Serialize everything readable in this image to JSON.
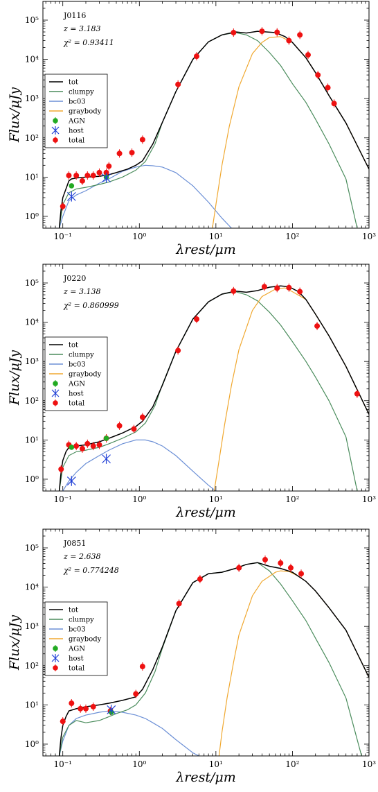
{
  "chart_data": [
    {
      "type": "line",
      "annotations": {
        "name": "J0116",
        "redshift": "z = 3.183",
        "chi2": "χ² = 0.93411"
      },
      "xlabel": "λrest/μm",
      "ylabel": "Flux/μJy",
      "xscale": "log",
      "yscale": "log",
      "xlim": [
        0.055,
        1000
      ],
      "ylim": [
        0.5,
        300000
      ],
      "xticklabels": [
        "10⁻¹",
        "10⁰",
        "10¹",
        "10²",
        "10³"
      ],
      "yticklabels": [
        "10⁰",
        "10¹",
        "10²",
        "10³",
        "10⁴",
        "10⁵"
      ],
      "legend_position": "left",
      "legend": [
        "tot",
        "clumpy",
        "bc03",
        "graybody",
        "AGN",
        "host",
        "total"
      ],
      "colors": {
        "tot": "#000000",
        "clumpy": "#4a8c5c",
        "bc03": "#6b8fd6",
        "graybody": "#f0a830",
        "agn": "#22aa22",
        "host": "#1f3fd6",
        "total": "#ee1111"
      },
      "series": [
        {
          "name": "tot",
          "x": [
            0.09,
            0.095,
            0.1,
            0.11,
            0.12,
            0.13,
            0.15,
            0.2,
            0.3,
            0.4,
            0.5,
            0.7,
            0.9,
            1.1,
            1.5,
            2,
            3,
            5,
            8,
            12,
            18,
            25,
            35,
            45,
            60,
            80,
            100,
            150,
            200,
            300,
            500,
            1000
          ],
          "y": [
            0.5,
            1.5,
            3,
            5,
            8,
            9,
            9.5,
            10,
            10.5,
            11.5,
            13,
            16,
            20,
            26,
            70,
            250,
            1500,
            10000,
            28000,
            42000,
            50000,
            47000,
            52000,
            50000,
            48000,
            38000,
            27000,
            11000,
            4600,
            1200,
            240,
            16
          ]
        },
        {
          "name": "clumpy",
          "x": [
            0.09,
            0.1,
            0.12,
            0.15,
            0.2,
            0.3,
            0.4,
            0.6,
            0.9,
            1.2,
            1.6,
            2,
            3,
            5,
            8,
            12,
            18,
            25,
            35,
            50,
            70,
            100,
            150,
            200,
            300,
            500,
            700
          ],
          "y": [
            0.5,
            2,
            4,
            5,
            5.5,
            6.5,
            7.5,
            10,
            15,
            25,
            70,
            250,
            1500,
            10000,
            28000,
            42000,
            48000,
            42000,
            30000,
            15000,
            7000,
            2400,
            800,
            300,
            70,
            9,
            0.5
          ]
        },
        {
          "name": "bc03",
          "x": [
            0.09,
            0.1,
            0.12,
            0.15,
            0.2,
            0.3,
            0.4,
            0.6,
            0.9,
            1.2,
            1.5,
            2,
            3,
            5,
            8,
            12,
            16
          ],
          "y": [
            0.5,
            1,
            2.5,
            3.5,
            4.5,
            7,
            9,
            14,
            18,
            20,
            19.5,
            18,
            13,
            6,
            2.3,
            0.9,
            0.5
          ]
        },
        {
          "name": "graybody",
          "x": [
            9,
            10,
            12,
            15,
            20,
            30,
            40,
            50,
            70,
            100,
            150,
            200,
            300,
            500,
            1000
          ],
          "y": [
            0.5,
            2,
            20,
            200,
            2000,
            14000,
            27000,
            36000,
            38000,
            27000,
            11000,
            4600,
            1200,
            240,
            16
          ]
        },
        {
          "name": "AGN",
          "x": [
            0.13,
            0.37
          ],
          "y": [
            6,
            10
          ]
        },
        {
          "name": "host",
          "x": [
            0.13,
            0.37
          ],
          "y": [
            3.2,
            9.5
          ]
        },
        {
          "name": "total",
          "x": [
            0.1,
            0.12,
            0.15,
            0.18,
            0.21,
            0.25,
            0.3,
            0.37,
            0.4,
            0.55,
            0.8,
            1.1,
            3.2,
            5.6,
            17,
            40,
            63,
            90,
            125,
            160,
            215,
            290,
            350
          ],
          "y": [
            1.8,
            11,
            11,
            8,
            11,
            11,
            13,
            13,
            19,
            40,
            42,
            90,
            2300,
            12000,
            48000,
            52000,
            49000,
            30000,
            42000,
            13000,
            4000,
            1900,
            750
          ]
        }
      ]
    },
    {
      "type": "line",
      "annotations": {
        "name": "J0220",
        "redshift": "z = 3.138",
        "chi2": "χ² = 0.860999"
      },
      "xlabel": "λrest/μm",
      "ylabel": "Flux/μJy",
      "xscale": "log",
      "yscale": "log",
      "xlim": [
        0.055,
        1000
      ],
      "ylim": [
        0.5,
        300000
      ],
      "xticklabels": [
        "10⁻¹",
        "10⁰",
        "10¹",
        "10²",
        "10³"
      ],
      "yticklabels": [
        "10⁰",
        "10¹",
        "10²",
        "10³",
        "10⁴",
        "10⁵"
      ],
      "legend_position": "left",
      "legend": [
        "tot",
        "clumpy",
        "bc03",
        "graybody",
        "AGN",
        "host",
        "total"
      ],
      "colors": {
        "tot": "#000000",
        "clumpy": "#4a8c5c",
        "bc03": "#6b8fd6",
        "graybody": "#f0a830",
        "agn": "#22aa22",
        "host": "#1f3fd6",
        "total": "#ee1111"
      },
      "series": [
        {
          "name": "tot",
          "x": [
            0.09,
            0.095,
            0.1,
            0.11,
            0.12,
            0.15,
            0.2,
            0.3,
            0.4,
            0.6,
            0.9,
            1.1,
            1.5,
            2,
            3,
            5,
            8,
            12,
            18,
            25,
            35,
            50,
            70,
            90,
            120,
            150,
            200,
            300,
            500,
            1000
          ],
          "y": [
            0.5,
            1.5,
            3,
            5,
            6.5,
            7,
            7.5,
            9,
            11,
            15,
            22,
            30,
            70,
            250,
            1800,
            12000,
            33000,
            52000,
            62000,
            58000,
            64000,
            78000,
            84000,
            80000,
            60000,
            38000,
            16000,
            4500,
            750,
            45
          ]
        },
        {
          "name": "clumpy",
          "x": [
            0.09,
            0.1,
            0.12,
            0.15,
            0.2,
            0.3,
            0.4,
            0.6,
            0.9,
            1.2,
            1.6,
            2,
            3,
            5,
            8,
            12,
            18,
            25,
            35,
            50,
            70,
            100,
            150,
            200,
            300,
            500,
            700
          ],
          "y": [
            0.5,
            2,
            4,
            5,
            5.5,
            6.5,
            8,
            11,
            16,
            27,
            75,
            260,
            1800,
            12000,
            33000,
            52000,
            60000,
            50000,
            35000,
            18000,
            8500,
            3200,
            1000,
            400,
            100,
            12,
            0.5
          ]
        },
        {
          "name": "bc03",
          "x": [
            0.1,
            0.12,
            0.15,
            0.2,
            0.3,
            0.4,
            0.6,
            0.9,
            1.2,
            1.5,
            2,
            3,
            5,
            8,
            10
          ],
          "y": [
            0.5,
            0.9,
            1.5,
            2.5,
            4,
            5.5,
            8,
            10,
            10,
            9,
            7,
            4,
            1.6,
            0.7,
            0.5
          ]
        },
        {
          "name": "graybody",
          "x": [
            9.5,
            11,
            13,
            16,
            20,
            30,
            40,
            60,
            80,
            100,
            150,
            200,
            300,
            500,
            1000
          ],
          "y": [
            0.5,
            3,
            25,
            250,
            2000,
            20000,
            45000,
            70000,
            75000,
            60000,
            38000,
            16000,
            4500,
            750,
            45
          ]
        },
        {
          "name": "AGN",
          "x": [
            0.13,
            0.37
          ],
          "y": [
            6.5,
            11
          ]
        },
        {
          "name": "host",
          "x": [
            0.13,
            0.37
          ],
          "y": [
            0.9,
            3.3
          ]
        },
        {
          "name": "total",
          "x": [
            0.095,
            0.12,
            0.15,
            0.18,
            0.21,
            0.25,
            0.3,
            0.37,
            0.55,
            0.85,
            1.1,
            3.2,
            5.6,
            17,
            43,
            63,
            90,
            125,
            210,
            700
          ],
          "y": [
            1.8,
            7.5,
            7,
            6,
            8,
            7,
            7.5,
            11,
            23,
            19,
            38,
            1900,
            12000,
            62000,
            80000,
            74000,
            76000,
            60000,
            8000,
            150
          ]
        }
      ]
    },
    {
      "type": "line",
      "annotations": {
        "name": "J0851",
        "redshift": "z = 2.638",
        "chi2": "χ² = 0.774248"
      },
      "xlabel": "λrest/μm",
      "ylabel": "Flux/μJy",
      "xscale": "log",
      "yscale": "log",
      "xlim": [
        0.055,
        1000
      ],
      "ylim": [
        0.5,
        300000
      ],
      "xticklabels": [
        "10⁻¹",
        "10⁰",
        "10¹",
        "10²",
        "10³"
      ],
      "yticklabels": [
        "10⁰",
        "10¹",
        "10²",
        "10³",
        "10⁴",
        "10⁵"
      ],
      "legend_position": "left",
      "legend": [
        "tot",
        "clumpy",
        "bc03",
        "graybody",
        "AGN",
        "host",
        "total"
      ],
      "colors": {
        "tot": "#000000",
        "clumpy": "#4a8c5c",
        "bc03": "#6b8fd6",
        "graybody": "#f0a830",
        "agn": "#22aa22",
        "host": "#1f3fd6",
        "total": "#ee1111"
      },
      "series": [
        {
          "name": "tot",
          "x": [
            0.09,
            0.095,
            0.1,
            0.11,
            0.12,
            0.15,
            0.2,
            0.3,
            0.4,
            0.6,
            0.9,
            1.1,
            1.5,
            2,
            3,
            5,
            8,
            12,
            18,
            25,
            35,
            50,
            70,
            100,
            150,
            200,
            300,
            500,
            1000
          ],
          "y": [
            0.5,
            1.5,
            3,
            5,
            7,
            8,
            9,
            10,
            11,
            13,
            16,
            25,
            80,
            300,
            2500,
            13000,
            22000,
            24000,
            30000,
            38000,
            42000,
            34000,
            30000,
            24000,
            14000,
            8000,
            3000,
            800,
            50
          ]
        },
        {
          "name": "clumpy",
          "x": [
            0.09,
            0.1,
            0.12,
            0.15,
            0.2,
            0.3,
            0.4,
            0.5,
            0.7,
            0.9,
            1.2,
            1.6,
            2,
            3,
            5,
            8,
            12,
            18,
            25,
            35,
            50,
            70,
            100,
            150,
            200,
            300,
            500,
            800
          ],
          "y": [
            0.5,
            1.5,
            3,
            4,
            3.5,
            4,
            5,
            6,
            7.5,
            10,
            20,
            70,
            280,
            2500,
            13000,
            22000,
            24000,
            30000,
            38000,
            42000,
            26000,
            12000,
            4500,
            1400,
            500,
            120,
            15,
            0.5
          ]
        },
        {
          "name": "bc03",
          "x": [
            0.09,
            0.1,
            0.12,
            0.15,
            0.2,
            0.3,
            0.4,
            0.6,
            0.9,
            1.2,
            1.5,
            2,
            3,
            5,
            6
          ],
          "y": [
            0.5,
            1.2,
            3,
            4.5,
            5.5,
            6.5,
            7,
            6.5,
            5.5,
            4.5,
            3.5,
            2.5,
            1.3,
            0.6,
            0.5
          ]
        },
        {
          "name": "graybody",
          "x": [
            11,
            12,
            14,
            17,
            20,
            30,
            40,
            60,
            70,
            90,
            120,
            150,
            200,
            300,
            500,
            1000
          ],
          "y": [
            0.5,
            2,
            15,
            120,
            600,
            6000,
            14000,
            24000,
            26000,
            25000,
            19000,
            14000,
            8000,
            3000,
            800,
            50
          ]
        },
        {
          "name": "AGN",
          "x": [
            0.43
          ],
          "y": [
            6.5
          ]
        },
        {
          "name": "host",
          "x": [
            0.43
          ],
          "y": [
            7.5
          ]
        },
        {
          "name": "total",
          "x": [
            0.1,
            0.13,
            0.17,
            0.2,
            0.25,
            0.42,
            0.9,
            1.1,
            3.3,
            6.2,
            20,
            44,
            70,
            95,
            130
          ],
          "y": [
            3.8,
            11,
            8,
            8,
            9,
            7,
            19,
            95,
            3800,
            16000,
            31000,
            50000,
            41000,
            31000,
            22000
          ]
        }
      ]
    }
  ]
}
